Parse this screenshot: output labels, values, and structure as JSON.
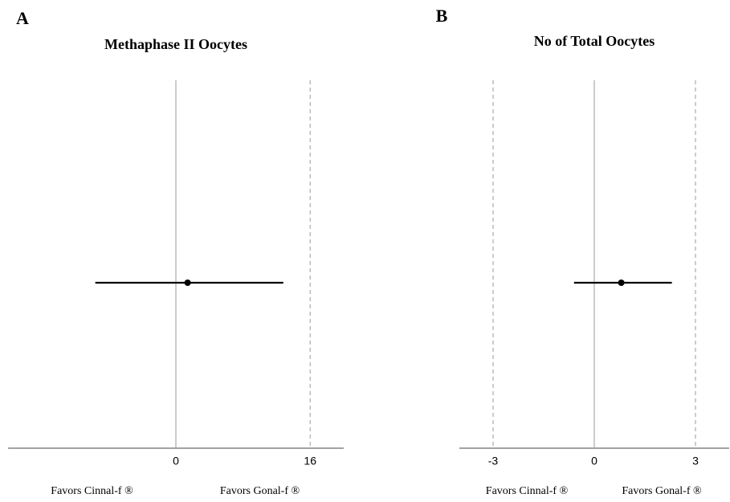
{
  "chart_data": [
    {
      "type": "forest",
      "label": "A",
      "title": "Methaphase II Oocytes",
      "estimate": 1.4,
      "ci": [
        -9.6,
        12.8
      ],
      "xlim": [
        -20,
        20
      ],
      "xticks": [
        0,
        16
      ],
      "favors_left": "Favors Cinnal-f ®",
      "favors_right": "Favors Gonal-f ®",
      "color": "#000000"
    },
    {
      "type": "forest",
      "label": "B",
      "title": "No of Total Oocytes",
      "estimate": 0.8,
      "ci": [
        -0.6,
        2.3
      ],
      "xlim": [
        -4,
        4
      ],
      "xticks": [
        -3,
        0,
        3
      ],
      "favors_left": "Favors Cinnal-f ®",
      "favors_right": "Favors Gonal-f ®",
      "color": "#000000"
    }
  ]
}
